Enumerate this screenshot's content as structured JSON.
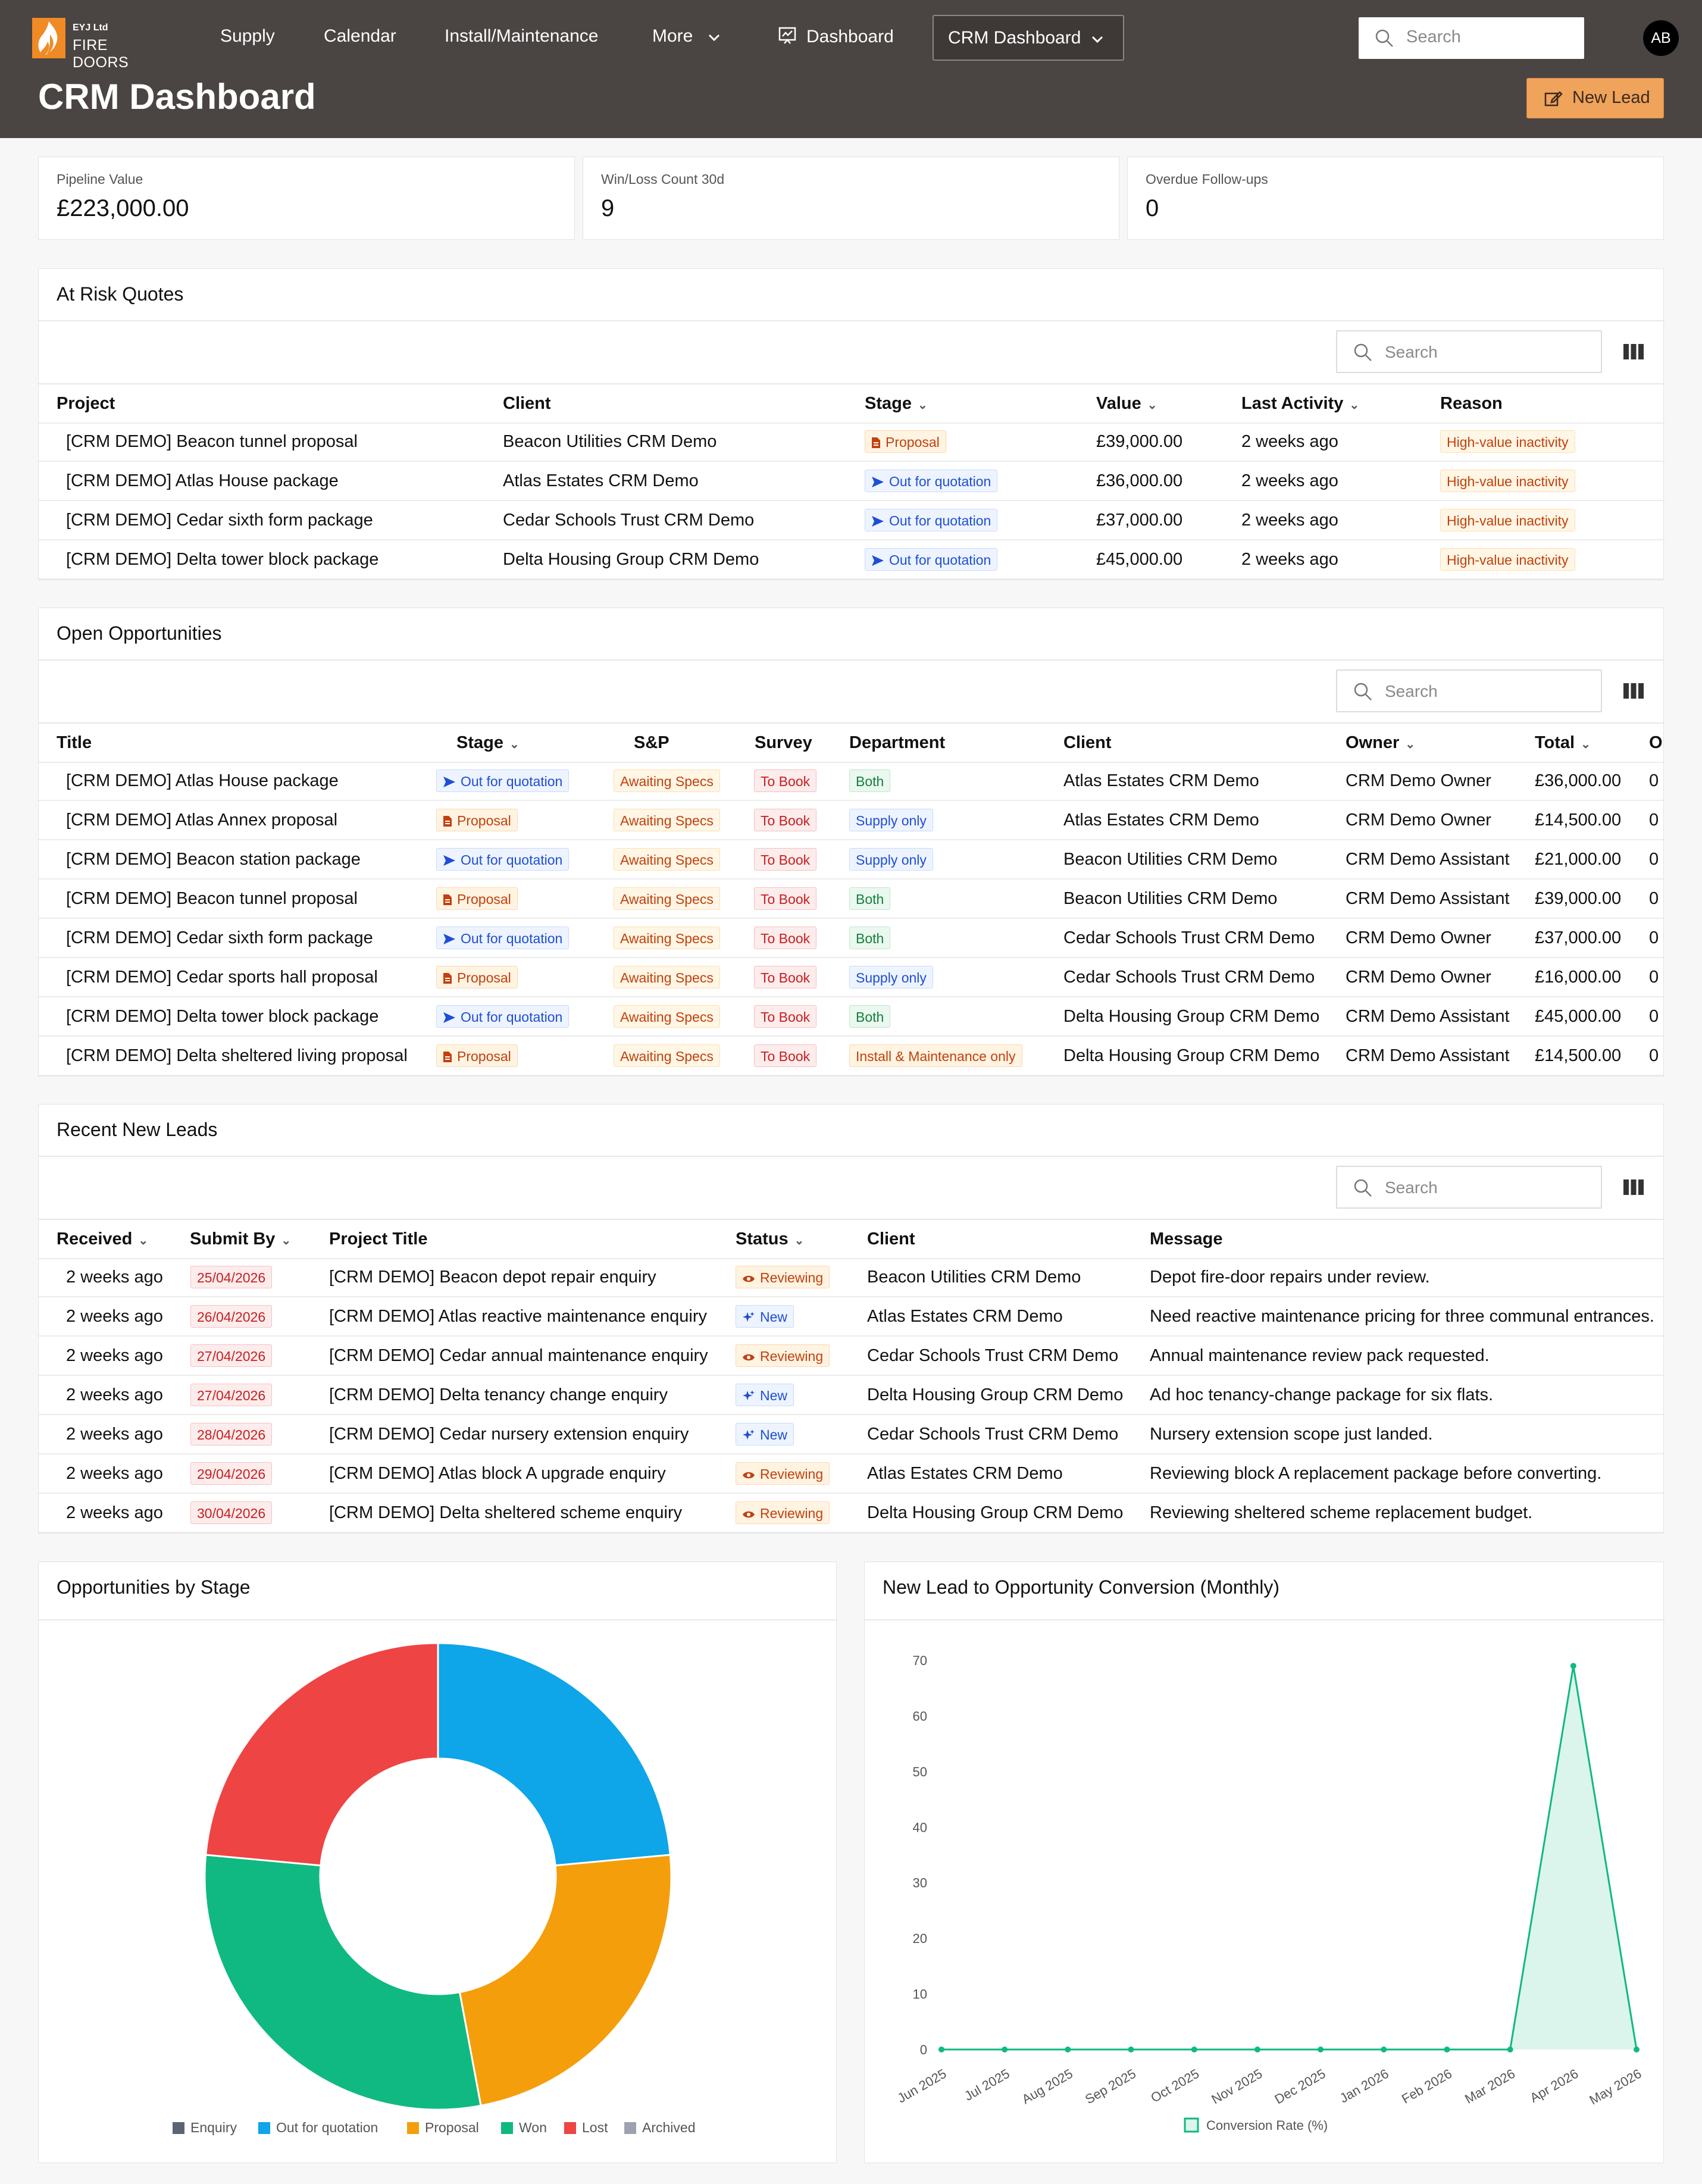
{
  "brand": {
    "small": "EYJ Ltd",
    "name": "FIRE DOORS"
  },
  "nav": {
    "supply": "Supply",
    "calendar": "Calendar",
    "install": "Install/Maintenance",
    "more": "More",
    "dashboard": "Dashboard",
    "crm": "CRM Dashboard"
  },
  "header": {
    "search_placeholder": "Search",
    "avatar": "AB",
    "title": "CRM Dashboard",
    "new_lead": "New Lead"
  },
  "kpis": [
    {
      "label": "Pipeline Value",
      "value": "£223,000.00"
    },
    {
      "label": "Win/Loss Count 30d",
      "value": "9"
    },
    {
      "label": "Overdue Follow-ups",
      "value": "0"
    }
  ],
  "at_risk": {
    "title": "At Risk Quotes",
    "search_placeholder": "Search",
    "headers": [
      "Project",
      "Client",
      "Stage",
      "Value",
      "Last Activity",
      "Reason"
    ],
    "rows": [
      {
        "project": "[CRM DEMO] Beacon tunnel proposal",
        "client": "Beacon Utilities CRM Demo",
        "stage": "Proposal",
        "value": "£39,000.00",
        "activity": "2 weeks ago",
        "reason": "High-value inactivity"
      },
      {
        "project": "[CRM DEMO] Atlas House package",
        "client": "Atlas Estates CRM Demo",
        "stage": "Out for quotation",
        "value": "£36,000.00",
        "activity": "2 weeks ago",
        "reason": "High-value inactivity"
      },
      {
        "project": "[CRM DEMO] Cedar sixth form package",
        "client": "Cedar Schools Trust CRM Demo",
        "stage": "Out for quotation",
        "value": "£37,000.00",
        "activity": "2 weeks ago",
        "reason": "High-value inactivity"
      },
      {
        "project": "[CRM DEMO] Delta tower block package",
        "client": "Delta Housing Group CRM Demo",
        "stage": "Out for quotation",
        "value": "£45,000.00",
        "activity": "2 weeks ago",
        "reason": "High-value inactivity"
      }
    ]
  },
  "open_opps": {
    "title": "Open Opportunities",
    "search_placeholder": "Search",
    "headers": [
      "Title",
      "Stage",
      "S&P",
      "Survey",
      "Department",
      "Client",
      "Owner",
      "Total",
      "O"
    ],
    "rows": [
      {
        "title": "[CRM DEMO] Atlas House package",
        "stage": "Out for quotation",
        "sp": "Awaiting Specs",
        "survey": "To Book",
        "dept": "Both",
        "client": "Atlas Estates CRM Demo",
        "owner": "CRM Demo Owner",
        "total": "£36,000.00",
        "o": "0"
      },
      {
        "title": "[CRM DEMO] Atlas Annex proposal",
        "stage": "Proposal",
        "sp": "Awaiting Specs",
        "survey": "To Book",
        "dept": "Supply only",
        "client": "Atlas Estates CRM Demo",
        "owner": "CRM Demo Owner",
        "total": "£14,500.00",
        "o": "0"
      },
      {
        "title": "[CRM DEMO] Beacon station package",
        "stage": "Out for quotation",
        "sp": "Awaiting Specs",
        "survey": "To Book",
        "dept": "Supply only",
        "client": "Beacon Utilities CRM Demo",
        "owner": "CRM Demo Assistant",
        "total": "£21,000.00",
        "o": "0"
      },
      {
        "title": "[CRM DEMO] Beacon tunnel proposal",
        "stage": "Proposal",
        "sp": "Awaiting Specs",
        "survey": "To Book",
        "dept": "Both",
        "client": "Beacon Utilities CRM Demo",
        "owner": "CRM Demo Assistant",
        "total": "£39,000.00",
        "o": "0"
      },
      {
        "title": "[CRM DEMO] Cedar sixth form package",
        "stage": "Out for quotation",
        "sp": "Awaiting Specs",
        "survey": "To Book",
        "dept": "Both",
        "client": "Cedar Schools Trust CRM Demo",
        "owner": "CRM Demo Owner",
        "total": "£37,000.00",
        "o": "0"
      },
      {
        "title": "[CRM DEMO] Cedar sports hall proposal",
        "stage": "Proposal",
        "sp": "Awaiting Specs",
        "survey": "To Book",
        "dept": "Supply only",
        "client": "Cedar Schools Trust CRM Demo",
        "owner": "CRM Demo Owner",
        "total": "£16,000.00",
        "o": "0"
      },
      {
        "title": "[CRM DEMO] Delta tower block package",
        "stage": "Out for quotation",
        "sp": "Awaiting Specs",
        "survey": "To Book",
        "dept": "Both",
        "client": "Delta Housing Group CRM Demo",
        "owner": "CRM Demo Assistant",
        "total": "£45,000.00",
        "o": "0"
      },
      {
        "title": "[CRM DEMO] Delta sheltered living proposal",
        "stage": "Proposal",
        "sp": "Awaiting Specs",
        "survey": "To Book",
        "dept": "Install & Maintenance only",
        "client": "Delta Housing Group CRM Demo",
        "owner": "CRM Demo Assistant",
        "total": "£14,500.00",
        "o": "0"
      }
    ]
  },
  "recent_leads": {
    "title": "Recent New Leads",
    "search_placeholder": "Search",
    "headers": [
      "Received",
      "Submit By",
      "Project Title",
      "Status",
      "Client",
      "Message"
    ],
    "rows": [
      {
        "received": "2 weeks ago",
        "submit": "25/04/2026",
        "project": "[CRM DEMO] Beacon depot repair enquiry",
        "status": "Reviewing",
        "client": "Beacon Utilities CRM Demo",
        "message": "Depot fire-door repairs under review."
      },
      {
        "received": "2 weeks ago",
        "submit": "26/04/2026",
        "project": "[CRM DEMO] Atlas reactive maintenance enquiry",
        "status": "New",
        "client": "Atlas Estates CRM Demo",
        "message": "Need reactive maintenance pricing for three communal entrances."
      },
      {
        "received": "2 weeks ago",
        "submit": "27/04/2026",
        "project": "[CRM DEMO] Cedar annual maintenance enquiry",
        "status": "Reviewing",
        "client": "Cedar Schools Trust CRM Demo",
        "message": "Annual maintenance review pack requested."
      },
      {
        "received": "2 weeks ago",
        "submit": "27/04/2026",
        "project": "[CRM DEMO] Delta tenancy change enquiry",
        "status": "New",
        "client": "Delta Housing Group CRM Demo",
        "message": "Ad hoc tenancy-change package for six flats."
      },
      {
        "received": "2 weeks ago",
        "submit": "28/04/2026",
        "project": "[CRM DEMO] Cedar nursery extension enquiry",
        "status": "New",
        "client": "Cedar Schools Trust CRM Demo",
        "message": "Nursery extension scope just landed."
      },
      {
        "received": "2 weeks ago",
        "submit": "29/04/2026",
        "project": "[CRM DEMO] Atlas block A upgrade enquiry",
        "status": "Reviewing",
        "client": "Atlas Estates CRM Demo",
        "message": "Reviewing block A replacement package before converting."
      },
      {
        "received": "2 weeks ago",
        "submit": "30/04/2026",
        "project": "[CRM DEMO] Delta sheltered scheme enquiry",
        "status": "Reviewing",
        "client": "Delta Housing Group CRM Demo",
        "message": "Reviewing sheltered scheme replacement budget."
      }
    ]
  },
  "chart_data": [
    {
      "type": "pie",
      "title": "Opportunities by Stage",
      "categories": [
        "Enquiry",
        "Out for quotation",
        "Proposal",
        "Won",
        "Lost",
        "Archived"
      ],
      "values": [
        0,
        4,
        4,
        5,
        4,
        0
      ],
      "colors": [
        "#5b6472",
        "#0ea5e9",
        "#f59e0b",
        "#10b981",
        "#ef4444",
        "#9ca3af"
      ],
      "legend": "bottom"
    },
    {
      "type": "area",
      "title": "New Lead to Opportunity Conversion (Monthly)",
      "categories": [
        "Jun 2025",
        "Jul 2025",
        "Aug 2025",
        "Sep 2025",
        "Oct 2025",
        "Nov 2025",
        "Dec 2025",
        "Jan 2026",
        "Feb 2026",
        "Mar 2026",
        "Apr 2026",
        "May 2026"
      ],
      "series": [
        {
          "name": "Conversion Rate (%)",
          "values": [
            0,
            0,
            0,
            0,
            0,
            0,
            0,
            0,
            0,
            0,
            69,
            0
          ]
        }
      ],
      "ylim": [
        0,
        70
      ],
      "yticks": [
        0,
        10,
        20,
        30,
        40,
        50,
        60,
        70
      ],
      "color": "#10b981",
      "legend": "bottom",
      "grid": false
    }
  ]
}
